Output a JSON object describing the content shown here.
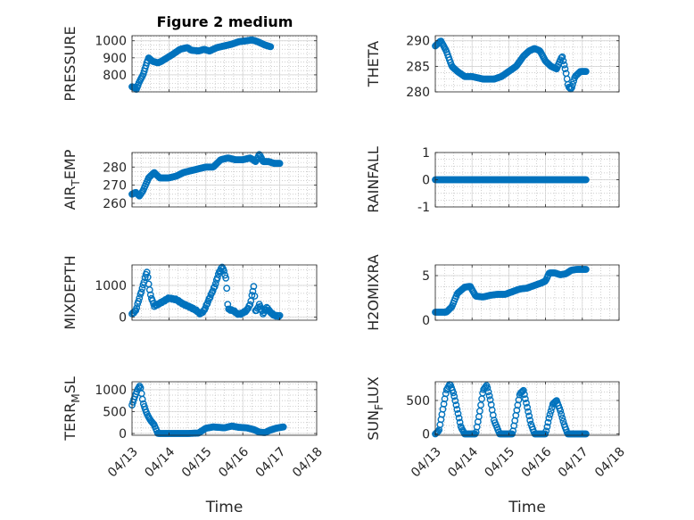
{
  "figure_title": "Figure 2 medium",
  "colors": {
    "marker": "#0072BD",
    "grid": "#bdbdbd",
    "axes": "#262626"
  },
  "chart_data": [
    {
      "type": "scatter",
      "id": "pressure",
      "ylabel": "PRESSURE",
      "ylim": [
        700,
        1030
      ],
      "yticks": [
        800,
        900,
        1000
      ],
      "yticklabels": [
        "800",
        "900",
        "1000"
      ],
      "xlim": [
        0,
        5
      ],
      "xticks": [
        0,
        1,
        2,
        3,
        4,
        5
      ],
      "xticklabels": [
        "04/13",
        "04/14",
        "04/15",
        "04/16",
        "04/17",
        "04/18"
      ],
      "xlabel": "",
      "grid": true,
      "series": [
        {
          "key": [
            [
              0,
              730
            ],
            [
              0.06,
              725
            ],
            [
              0.12,
              715
            ],
            [
              0.2,
              760
            ],
            [
              0.3,
              800
            ],
            [
              0.4,
              870
            ],
            [
              0.45,
              900
            ],
            [
              0.55,
              880
            ],
            [
              0.7,
              870
            ],
            [
              0.8,
              880
            ],
            [
              0.95,
              900
            ],
            [
              1.1,
              920
            ],
            [
              1.3,
              950
            ],
            [
              1.5,
              960
            ],
            [
              1.6,
              945
            ],
            [
              1.8,
              940
            ],
            [
              1.95,
              950
            ],
            [
              2.1,
              940
            ],
            [
              2.3,
              960
            ],
            [
              2.5,
              970
            ],
            [
              2.7,
              980
            ],
            [
              2.9,
              995
            ],
            [
              3.1,
              1000
            ],
            [
              3.25,
              1005
            ],
            [
              3.4,
              995
            ],
            [
              3.6,
              975
            ],
            [
              3.75,
              965
            ]
          ],
          "y_style": "smooth"
        }
      ]
    },
    {
      "type": "scatter",
      "id": "theta",
      "ylabel": "THETA",
      "ylim": [
        280,
        291
      ],
      "yticks": [
        280,
        285,
        290
      ],
      "yticklabels": [
        "280",
        "285",
        "290"
      ],
      "xlim": [
        0,
        5
      ],
      "xticks": [
        0,
        1,
        2,
        3,
        4,
        5
      ],
      "xticklabels": [
        "04/13",
        "04/14",
        "04/15",
        "04/16",
        "04/17",
        "04/18"
      ],
      "xlabel": "",
      "grid": true,
      "series": [
        {
          "key": [
            [
              0,
              289
            ],
            [
              0.15,
              290
            ],
            [
              0.3,
              288
            ],
            [
              0.45,
              285
            ],
            [
              0.6,
              284
            ],
            [
              0.8,
              283
            ],
            [
              1,
              283
            ],
            [
              1.3,
              282.5
            ],
            [
              1.6,
              282.5
            ],
            [
              1.8,
              283
            ],
            [
              2,
              284
            ],
            [
              2.2,
              285
            ],
            [
              2.4,
              287
            ],
            [
              2.55,
              288
            ],
            [
              2.7,
              288.5
            ],
            [
              2.85,
              288
            ],
            [
              3.0,
              286
            ],
            [
              3.15,
              285
            ],
            [
              3.3,
              284.5
            ],
            [
              3.45,
              287
            ],
            [
              3.55,
              284
            ],
            [
              3.62,
              281
            ],
            [
              3.7,
              280.5
            ],
            [
              3.8,
              283
            ],
            [
              3.95,
              284
            ],
            [
              4.1,
              284
            ]
          ],
          "y_style": "smooth"
        }
      ]
    },
    {
      "type": "scatter",
      "id": "air_temp",
      "ylabel": "AIR_TEMP",
      "ylim": [
        258,
        288
      ],
      "yticks": [
        260,
        270,
        280
      ],
      "yticklabels": [
        "260",
        "270",
        "280"
      ],
      "xlim": [
        0,
        5
      ],
      "xticks": [
        0,
        1,
        2,
        3,
        4,
        5
      ],
      "xticklabels": [
        "04/13",
        "04/14",
        "04/15",
        "04/16",
        "04/17",
        "04/18"
      ],
      "xlabel": "",
      "grid": true,
      "series": [
        {
          "key": [
            [
              0,
              265
            ],
            [
              0.1,
              266
            ],
            [
              0.2,
              264
            ],
            [
              0.3,
              267
            ],
            [
              0.45,
              274
            ],
            [
              0.6,
              277
            ],
            [
              0.75,
              274
            ],
            [
              1,
              274
            ],
            [
              1.2,
              275
            ],
            [
              1.4,
              277
            ],
            [
              1.6,
              278
            ],
            [
              1.8,
              279
            ],
            [
              2,
              280
            ],
            [
              2.2,
              280
            ],
            [
              2.4,
              284
            ],
            [
              2.6,
              285
            ],
            [
              2.8,
              284
            ],
            [
              3.0,
              284
            ],
            [
              3.2,
              285
            ],
            [
              3.35,
              283
            ],
            [
              3.45,
              287
            ],
            [
              3.55,
              283
            ],
            [
              3.7,
              283
            ],
            [
              3.85,
              282
            ],
            [
              4.0,
              282
            ]
          ],
          "y_style": "smooth"
        }
      ]
    },
    {
      "type": "scatter",
      "id": "rainfall",
      "ylabel": "RAINFALL",
      "ylim": [
        -1,
        1
      ],
      "yticks": [
        -1,
        0,
        1
      ],
      "yticklabels": [
        "-1",
        "0",
        "1"
      ],
      "xlim": [
        0,
        5
      ],
      "xticks": [
        0,
        1,
        2,
        3,
        4,
        5
      ],
      "xticklabels": [
        "04/13",
        "04/14",
        "04/15",
        "04/16",
        "04/17",
        "04/18"
      ],
      "xlabel": "",
      "grid": true,
      "series": [
        {
          "key": [
            [
              0,
              0
            ],
            [
              4.1,
              0
            ]
          ],
          "y_style": "constant"
        }
      ]
    },
    {
      "type": "scatter",
      "id": "mixdepth",
      "ylabel": "MIXDEPTH",
      "ylim": [
        -100,
        1650
      ],
      "yticks": [
        0,
        1000
      ],
      "yticklabels": [
        "0",
        "1000"
      ],
      "xlim": [
        0,
        5
      ],
      "xticks": [
        0,
        1,
        2,
        3,
        4,
        5
      ],
      "xticklabels": [
        "04/13",
        "04/14",
        "04/15",
        "04/16",
        "04/17",
        "04/18"
      ],
      "xlabel": "",
      "grid": true,
      "series": [
        {
          "key": [
            [
              0,
              100
            ],
            [
              0.1,
              200
            ],
            [
              0.2,
              600
            ],
            [
              0.3,
              1000
            ],
            [
              0.4,
              1450
            ],
            [
              0.5,
              700
            ],
            [
              0.6,
              350
            ],
            [
              0.7,
              400
            ],
            [
              0.85,
              500
            ],
            [
              1.0,
              600
            ],
            [
              1.2,
              550
            ],
            [
              1.4,
              400
            ],
            [
              1.6,
              300
            ],
            [
              1.75,
              200
            ],
            [
              1.85,
              100
            ],
            [
              1.95,
              200
            ],
            [
              2.1,
              600
            ],
            [
              2.25,
              1000
            ],
            [
              2.35,
              1400
            ],
            [
              2.45,
              1600
            ],
            [
              2.55,
              1200
            ],
            [
              2.6,
              250
            ],
            [
              2.75,
              200
            ],
            [
              2.85,
              100
            ],
            [
              2.95,
              100
            ],
            [
              3.1,
              200
            ],
            [
              3.2,
              400
            ],
            [
              3.3,
              1000
            ],
            [
              3.35,
              150
            ],
            [
              3.45,
              400
            ],
            [
              3.55,
              100
            ],
            [
              3.65,
              300
            ],
            [
              3.75,
              150
            ],
            [
              3.85,
              50
            ],
            [
              4.0,
              30
            ]
          ],
          "y_style": "jitter"
        }
      ]
    },
    {
      "type": "scatter",
      "id": "h2omixra",
      "ylabel": "H2OMIXRA",
      "ylim": [
        0,
        6.2
      ],
      "yticks": [
        0,
        5
      ],
      "yticklabels": [
        "0",
        "5"
      ],
      "xlim": [
        0,
        5
      ],
      "xticks": [
        0,
        1,
        2,
        3,
        4,
        5
      ],
      "xticklabels": [
        "04/13",
        "04/14",
        "04/15",
        "04/16",
        "04/17",
        "04/18"
      ],
      "xlabel": "",
      "grid": true,
      "series": [
        {
          "key": [
            [
              0,
              0.9
            ],
            [
              0.3,
              0.9
            ],
            [
              0.45,
              1.5
            ],
            [
              0.6,
              3
            ],
            [
              0.8,
              3.7
            ],
            [
              0.95,
              3.8
            ],
            [
              1.1,
              2.7
            ],
            [
              1.3,
              2.6
            ],
            [
              1.5,
              2.8
            ],
            [
              1.7,
              2.9
            ],
            [
              1.9,
              2.9
            ],
            [
              2.1,
              3.2
            ],
            [
              2.3,
              3.5
            ],
            [
              2.5,
              3.6
            ],
            [
              2.7,
              3.9
            ],
            [
              2.9,
              4.2
            ],
            [
              3.0,
              4.4
            ],
            [
              3.1,
              5.3
            ],
            [
              3.25,
              5.3
            ],
            [
              3.4,
              5.1
            ],
            [
              3.55,
              5.2
            ],
            [
              3.7,
              5.6
            ],
            [
              3.85,
              5.7
            ],
            [
              4.0,
              5.7
            ],
            [
              4.1,
              5.7
            ]
          ],
          "y_style": "smooth"
        }
      ]
    },
    {
      "type": "scatter",
      "id": "terr_msl",
      "ylabel": "TERR_MSL",
      "ylim": [
        -40,
        1180
      ],
      "yticks": [
        0,
        500,
        1000
      ],
      "yticklabels": [
        "0",
        "500",
        "1000"
      ],
      "xlim": [
        0,
        5
      ],
      "xticks": [
        0,
        1,
        2,
        3,
        4,
        5
      ],
      "xticklabels": [
        "04/13",
        "04/14",
        "04/15",
        "04/16",
        "04/17",
        "04/18"
      ],
      "xlabel": "Time",
      "grid": true,
      "series": [
        {
          "key": [
            [
              0,
              650
            ],
            [
              0.08,
              850
            ],
            [
              0.15,
              1000
            ],
            [
              0.22,
              1100
            ],
            [
              0.3,
              700
            ],
            [
              0.4,
              450
            ],
            [
              0.5,
              300
            ],
            [
              0.6,
              200
            ],
            [
              0.7,
              0
            ],
            [
              1.0,
              0
            ],
            [
              1.5,
              0
            ],
            [
              1.8,
              10
            ],
            [
              2.0,
              120
            ],
            [
              2.2,
              150
            ],
            [
              2.5,
              130
            ],
            [
              2.7,
              170
            ],
            [
              2.9,
              140
            ],
            [
              3.1,
              130
            ],
            [
              3.3,
              90
            ],
            [
              3.45,
              30
            ],
            [
              3.6,
              20
            ],
            [
              3.75,
              80
            ],
            [
              3.9,
              120
            ],
            [
              4.1,
              150
            ]
          ],
          "y_style": "smooth"
        }
      ]
    },
    {
      "type": "scatter",
      "id": "sun_flux",
      "ylabel": "SUN_FLUX",
      "ylim": [
        -20,
        780
      ],
      "yticks": [
        0,
        500
      ],
      "yticklabels": [
        "0",
        "500"
      ],
      "xlim": [
        0,
        5
      ],
      "xticks": [
        0,
        1,
        2,
        3,
        4,
        5
      ],
      "xticklabels": [
        "04/13",
        "04/14",
        "04/15",
        "04/16",
        "04/17",
        "04/18"
      ],
      "xlabel": "Time",
      "grid": true,
      "series": [
        {
          "key": [
            [
              0,
              0
            ],
            [
              0.1,
              50
            ],
            [
              0.2,
              350
            ],
            [
              0.3,
              650
            ],
            [
              0.4,
              750
            ],
            [
              0.5,
              600
            ],
            [
              0.6,
              350
            ],
            [
              0.7,
              100
            ],
            [
              0.8,
              0
            ],
            [
              1.1,
              0
            ],
            [
              1.2,
              300
            ],
            [
              1.3,
              650
            ],
            [
              1.4,
              730
            ],
            [
              1.5,
              500
            ],
            [
              1.6,
              200
            ],
            [
              1.75,
              0
            ],
            [
              2.1,
              0
            ],
            [
              2.2,
              300
            ],
            [
              2.3,
              600
            ],
            [
              2.4,
              650
            ],
            [
              2.5,
              400
            ],
            [
              2.6,
              150
            ],
            [
              2.7,
              0
            ],
            [
              3.0,
              0
            ],
            [
              3.1,
              250
            ],
            [
              3.2,
              450
            ],
            [
              3.3,
              500
            ],
            [
              3.4,
              350
            ],
            [
              3.5,
              150
            ],
            [
              3.6,
              0
            ],
            [
              4.1,
              0
            ]
          ],
          "y_style": "smooth"
        }
      ]
    }
  ]
}
